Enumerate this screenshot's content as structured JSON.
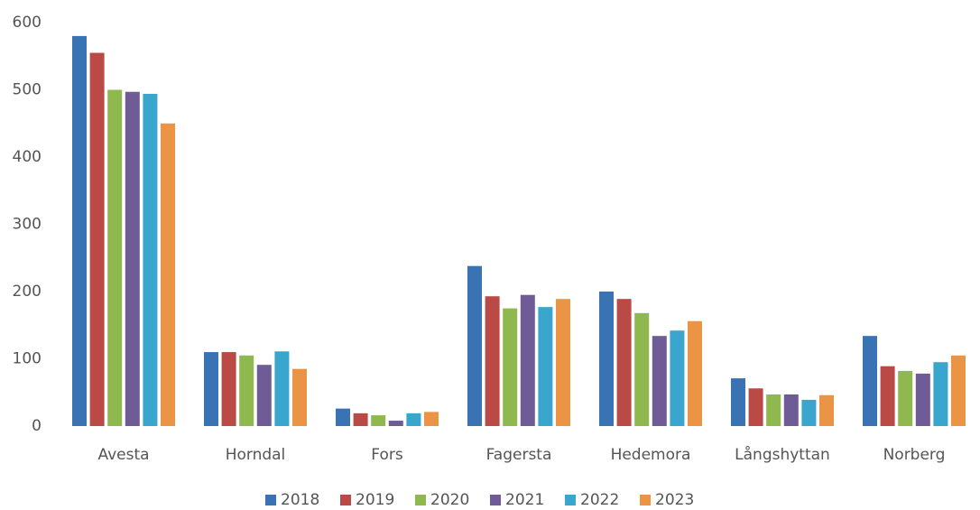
{
  "chart_data": {
    "type": "bar",
    "categories": [
      "Avesta",
      "Horndal",
      "Fors",
      "Fagersta",
      "Hedemora",
      "Långshyttan",
      "Norberg"
    ],
    "series": [
      {
        "name": "2018",
        "color": "#3a73b4",
        "values": [
          580,
          110,
          26,
          238,
          200,
          71,
          134
        ]
      },
      {
        "name": "2019",
        "color": "#b94a45",
        "values": [
          555,
          110,
          19,
          193,
          189,
          56,
          89
        ]
      },
      {
        "name": "2020",
        "color": "#8fb84e",
        "values": [
          500,
          105,
          16,
          175,
          168,
          47,
          82
        ]
      },
      {
        "name": "2021",
        "color": "#6f5c96",
        "values": [
          497,
          91,
          8,
          195,
          134,
          47,
          78
        ]
      },
      {
        "name": "2022",
        "color": "#3aa5cd",
        "values": [
          494,
          111,
          19,
          177,
          142,
          39,
          95
        ]
      },
      {
        "name": "2023",
        "color": "#ec9445",
        "values": [
          450,
          85,
          21,
          189,
          156,
          46,
          105
        ]
      }
    ],
    "ylim": [
      0,
      600
    ],
    "yticks": [
      0,
      100,
      200,
      300,
      400,
      500,
      600
    ],
    "legend": "bottom"
  }
}
